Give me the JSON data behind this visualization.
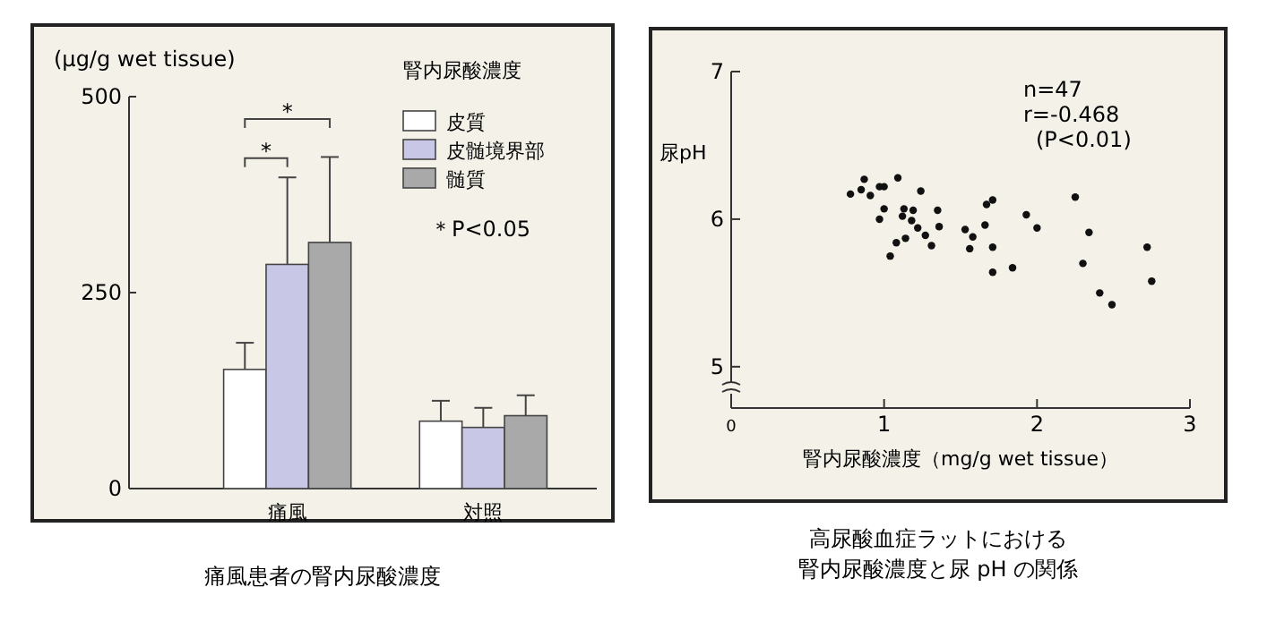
{
  "chart_data": [
    {
      "type": "bar",
      "title": "痛風患者の腎内尿酸濃度",
      "ylabel": "(μg/g wet tissue)",
      "legend_title": "腎内尿酸濃度",
      "legend": "top right",
      "categories": [
        "痛風",
        "対照"
      ],
      "ylim": [
        0,
        500
      ],
      "yticks": [
        0,
        250,
        500
      ],
      "series": [
        {
          "name": "皮質",
          "color": "#ffffff",
          "values": [
            152,
            86
          ],
          "errors": [
            [
              152,
              186
            ],
            [
              86,
              112
            ]
          ]
        },
        {
          "name": "皮髄境界部",
          "color": "#c8c8e6",
          "values": [
            286,
            78
          ],
          "errors": [
            [
              286,
              397
            ],
            [
              78,
              103
            ]
          ]
        },
        {
          "name": "髄質",
          "color": "#a9a9a9",
          "values": [
            314,
            93
          ],
          "errors": [
            [
              314,
              423
            ],
            [
              93,
              119
            ]
          ]
        }
      ],
      "annotations": [
        "*",
        "*",
        "＊P<0.05"
      ]
    },
    {
      "type": "scatter",
      "title": "高尿酸血症ラットにおける腎内尿酸濃度と尿 pH の関係",
      "xlabel": "腎内尿酸濃度（mg/g  wet  tissue）",
      "ylabel": "尿pH",
      "xlim": [
        0,
        3
      ],
      "xticks": [
        0,
        1,
        2,
        3
      ],
      "ylim": [
        4.72,
        7
      ],
      "yticks": [
        5,
        6,
        7
      ],
      "marker": "circle",
      "series": [
        {
          "color": "#111111",
          "x": [
            0.78,
            0.85,
            0.87,
            0.91,
            0.97,
            1.0,
            1.0,
            0.97,
            1.09,
            1.04,
            1.08,
            1.13,
            1.12,
            1.14,
            1.19,
            1.18,
            1.24,
            1.22,
            1.27,
            1.31,
            1.35,
            1.36,
            1.53,
            1.58,
            1.56,
            1.66,
            1.67,
            1.71,
            1.71,
            1.71,
            1.84,
            1.93,
            2.0,
            2.25,
            2.34,
            2.3,
            2.41,
            2.49,
            2.72,
            2.75
          ],
          "values": [
            6.17,
            6.2,
            6.27,
            6.16,
            6.22,
            6.22,
            6.07,
            6.0,
            6.28,
            5.75,
            5.84,
            6.07,
            6.02,
            5.87,
            6.06,
            5.99,
            6.19,
            5.94,
            5.89,
            5.82,
            6.06,
            5.95,
            5.93,
            5.88,
            5.8,
            5.96,
            6.1,
            6.13,
            5.81,
            5.64,
            5.67,
            6.03,
            5.94,
            6.15,
            5.91,
            5.7,
            5.5,
            5.42,
            5.81,
            5.58
          ]
        }
      ],
      "annotations": [
        "n=47",
        "r=-0.468",
        "(P<0.01)"
      ]
    }
  ]
}
